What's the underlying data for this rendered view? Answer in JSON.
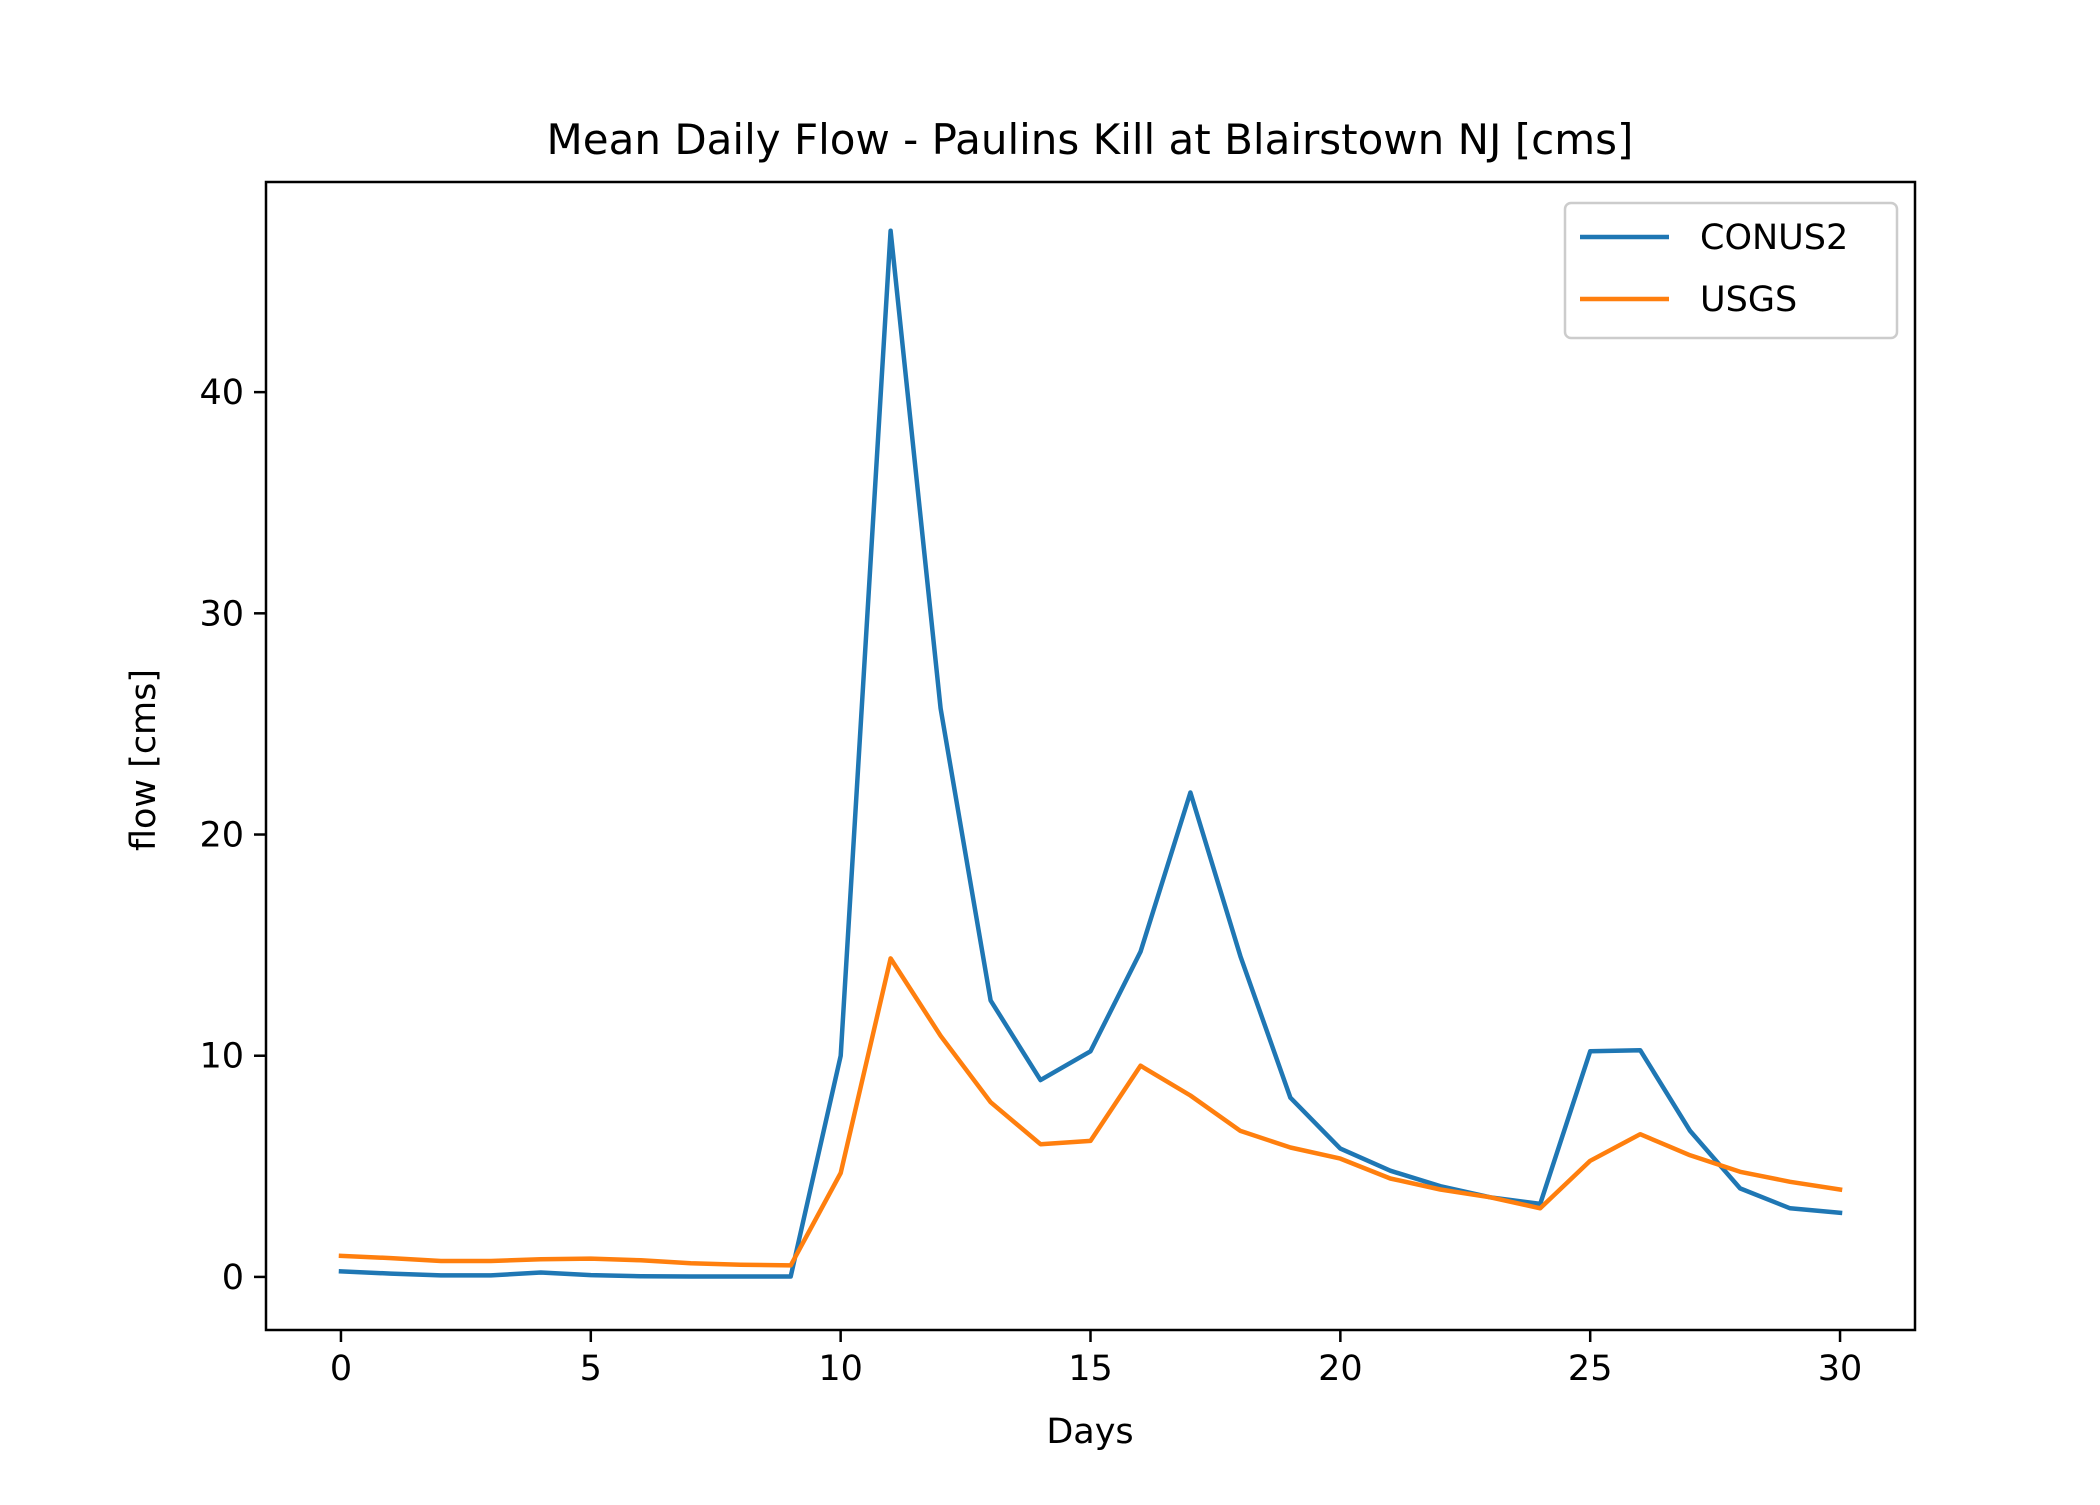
{
  "chart_data": {
    "type": "line",
    "title": "Mean Daily Flow - Paulins Kill at Blairstown NJ [cms]",
    "xlabel": "Days",
    "ylabel": "flow [cms]",
    "xlim": [
      -1.5,
      31.5
    ],
    "ylim": [
      -2.4,
      49.5
    ],
    "xticks": [
      0,
      5,
      10,
      15,
      20,
      25,
      30
    ],
    "yticks": [
      0,
      10,
      20,
      30,
      40
    ],
    "xtick_labels": [
      "0",
      "5",
      "10",
      "15",
      "20",
      "25",
      "30"
    ],
    "ytick_labels": [
      "0",
      "10",
      "20",
      "30",
      "40"
    ],
    "grid": false,
    "legend_position": "top-right",
    "x": [
      0,
      1,
      2,
      3,
      4,
      5,
      6,
      7,
      8,
      9,
      10,
      11,
      12,
      13,
      14,
      15,
      16,
      17,
      18,
      19,
      20,
      21,
      22,
      23,
      24,
      25,
      26,
      27,
      28,
      29,
      30
    ],
    "series": [
      {
        "name": "CONUS2",
        "color": "#1f77b4",
        "values": [
          0.25,
          0.15,
          0.07,
          0.07,
          0.2,
          0.08,
          0.03,
          0.02,
          0.02,
          0.02,
          10.0,
          47.3,
          25.7,
          12.5,
          8.9,
          10.2,
          14.7,
          21.9,
          14.5,
          8.1,
          5.8,
          4.8,
          4.1,
          3.6,
          3.3,
          10.2,
          10.25,
          6.6,
          4.0,
          3.1,
          2.9
        ]
      },
      {
        "name": "USGS",
        "color": "#ff7f0e",
        "values": [
          0.95,
          0.85,
          0.72,
          0.72,
          0.8,
          0.83,
          0.75,
          0.62,
          0.55,
          0.52,
          4.7,
          14.4,
          10.9,
          7.9,
          6.0,
          6.15,
          9.55,
          8.2,
          6.6,
          5.85,
          5.35,
          4.45,
          3.95,
          3.6,
          3.1,
          5.25,
          6.45,
          5.5,
          4.75,
          4.3,
          3.95
        ]
      }
    ]
  }
}
